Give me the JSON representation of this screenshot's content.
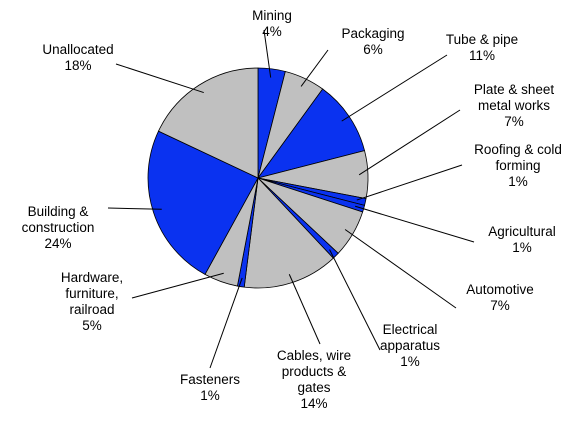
{
  "chart_data": {
    "type": "pie",
    "title": "",
    "start_angle_deg": 0,
    "direction": "clockwise",
    "colors": {
      "blue": "#0a32f0",
      "gray": "#c0c0c0"
    },
    "slices": [
      {
        "label": [
          "Mining"
        ],
        "value_label": "4%",
        "value": 4,
        "color": "#0a32f0"
      },
      {
        "label": [
          "Packaging"
        ],
        "value_label": "6%",
        "value": 6,
        "color": "#c0c0c0"
      },
      {
        "label": [
          "Tube & pipe"
        ],
        "value_label": "11%",
        "value": 11,
        "color": "#0a32f0"
      },
      {
        "label": [
          "Plate & sheet",
          "metal works"
        ],
        "value_label": "7%",
        "value": 7,
        "color": "#c0c0c0"
      },
      {
        "label": [
          "Roofing & cold",
          "forming"
        ],
        "value_label": "1%",
        "value": 1,
        "color": "#0a32f0"
      },
      {
        "label": [
          "Agricultural"
        ],
        "value_label": "1%",
        "value": 1,
        "color": "#0a32f0"
      },
      {
        "label": [
          "Automotive"
        ],
        "value_label": "7%",
        "value": 7,
        "color": "#c0c0c0"
      },
      {
        "label": [
          "Electrical",
          "apparatus"
        ],
        "value_label": "1%",
        "value": 1,
        "color": "#0a32f0"
      },
      {
        "label": [
          "Cables, wire",
          "products &",
          "gates"
        ],
        "value_label": "14%",
        "value": 14,
        "color": "#c0c0c0"
      },
      {
        "label": [
          "Fasteners"
        ],
        "value_label": "1%",
        "value": 1,
        "color": "#0a32f0"
      },
      {
        "label": [
          "Hardware,",
          "furniture,",
          "railroad"
        ],
        "value_label": "5%",
        "value": 5,
        "color": "#c0c0c0"
      },
      {
        "label": [
          "Building &",
          "construction"
        ],
        "value_label": "24%",
        "value": 24,
        "color": "#0a32f0"
      },
      {
        "label": [
          "Unallocated"
        ],
        "value_label": "18%",
        "value": 18,
        "color": "#c0c0c0"
      }
    ]
  }
}
